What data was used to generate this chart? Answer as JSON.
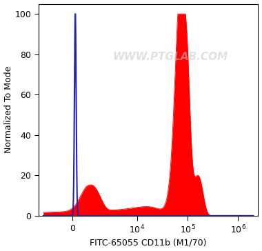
{
  "xlabel": "FITC-65055 CD11b (M1/70)",
  "ylabel": "Normalized To Mode",
  "ylim": [
    0,
    105
  ],
  "yticks": [
    0,
    20,
    40,
    60,
    80,
    100
  ],
  "blue_color": "#2222bb",
  "red_color": "#ff0000",
  "watermark_text": "WWW.PTGLAB.COM",
  "watermark_color": "#c8c8c8",
  "watermark_alpha": 0.55,
  "background_color": "#ffffff",
  "fig_width": 3.8,
  "fig_height": 3.64,
  "dpi": 100,
  "linthresh": 1000,
  "linscale": 0.25
}
